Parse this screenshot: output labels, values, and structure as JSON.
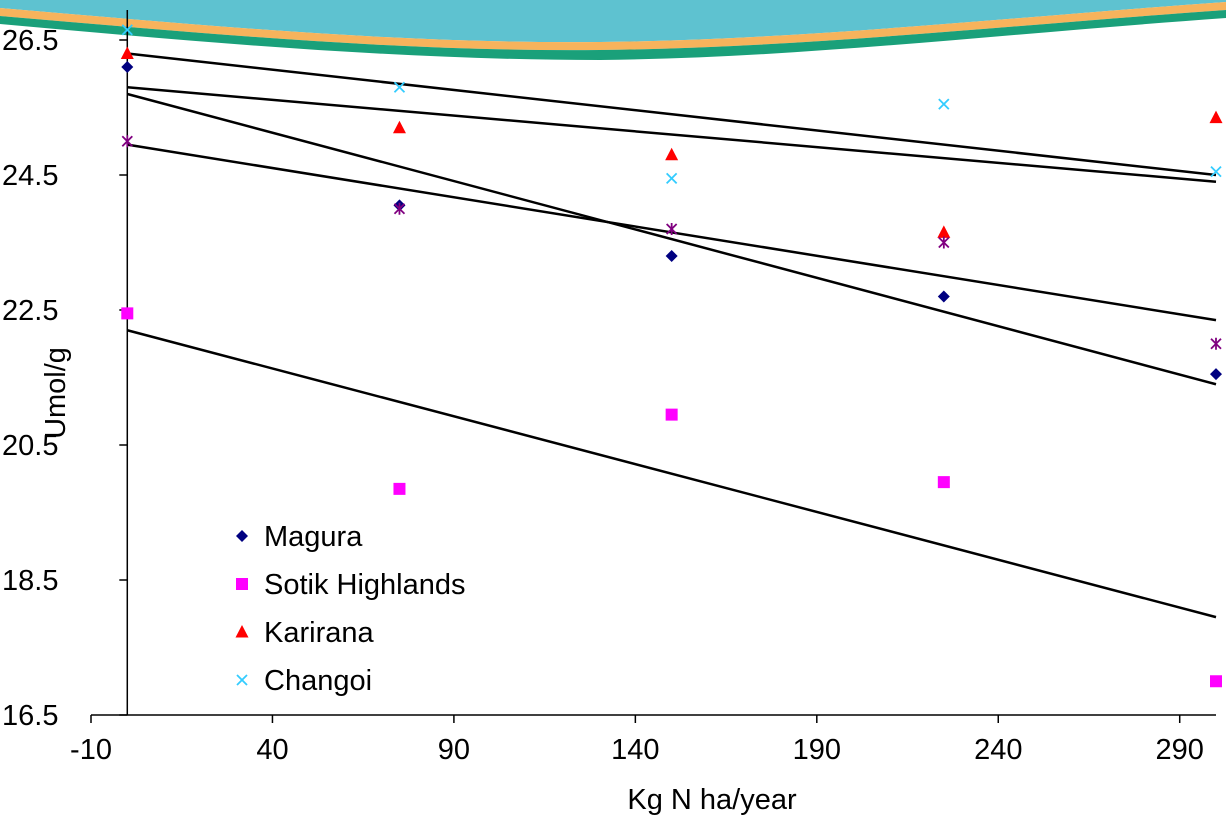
{
  "chart_data": {
    "type": "scatter",
    "title": "",
    "xlabel": "Kg N ha/year",
    "ylabel": "Umol/g",
    "xlim": [
      -10,
      300
    ],
    "ylim": [
      16.5,
      27.0
    ],
    "x_ticks": [
      "-10",
      "40",
      "90",
      "140",
      "190",
      "240",
      "290"
    ],
    "y_ticks": [
      "16.5",
      "18.5",
      "20.5",
      "22.5",
      "24.5",
      "26.5"
    ],
    "legend_position": "bottom-left",
    "series": [
      {
        "name": "Magura",
        "marker": "diamond",
        "color": "#000080",
        "x": [
          0,
          75,
          150,
          225,
          300
        ],
        "y": [
          26.1,
          24.05,
          23.3,
          22.7,
          21.55
        ],
        "trend": [
          25.7,
          21.4
        ],
        "in_legend": true
      },
      {
        "name": "Sotik Highlands",
        "marker": "square",
        "color": "#ff00ff",
        "x": [
          0,
          75,
          150,
          225,
          300
        ],
        "y": [
          22.45,
          19.85,
          20.95,
          19.95,
          17.0
        ],
        "trend": [
          22.2,
          17.95
        ],
        "in_legend": true
      },
      {
        "name": "Karirana",
        "marker": "triangle",
        "color": "#ff0000",
        "x": [
          0,
          75,
          150,
          225,
          300
        ],
        "y": [
          26.3,
          25.2,
          24.8,
          23.65,
          25.35
        ],
        "trend": [
          25.8,
          24.4
        ],
        "in_legend": true
      },
      {
        "name": "Changoi",
        "marker": "x",
        "color": "#33ccff",
        "x": [
          0,
          75,
          150,
          225,
          300
        ],
        "y": [
          26.65,
          25.8,
          24.45,
          25.55,
          24.55
        ],
        "trend": [
          26.3,
          24.5
        ],
        "in_legend": true
      },
      {
        "name": "",
        "marker": "star",
        "color": "#800080",
        "x": [
          0,
          75,
          150,
          225,
          300
        ],
        "y": [
          25.0,
          24.0,
          23.7,
          23.5,
          22.0
        ],
        "trend": [
          24.95,
          22.35
        ],
        "in_legend": false
      }
    ],
    "colors": {
      "banner_teal": "#5ec2d0",
      "banner_orange": "#f7b35c",
      "banner_green": "#1aa07a",
      "trend_line": "#000000",
      "axis": "#000000"
    }
  }
}
